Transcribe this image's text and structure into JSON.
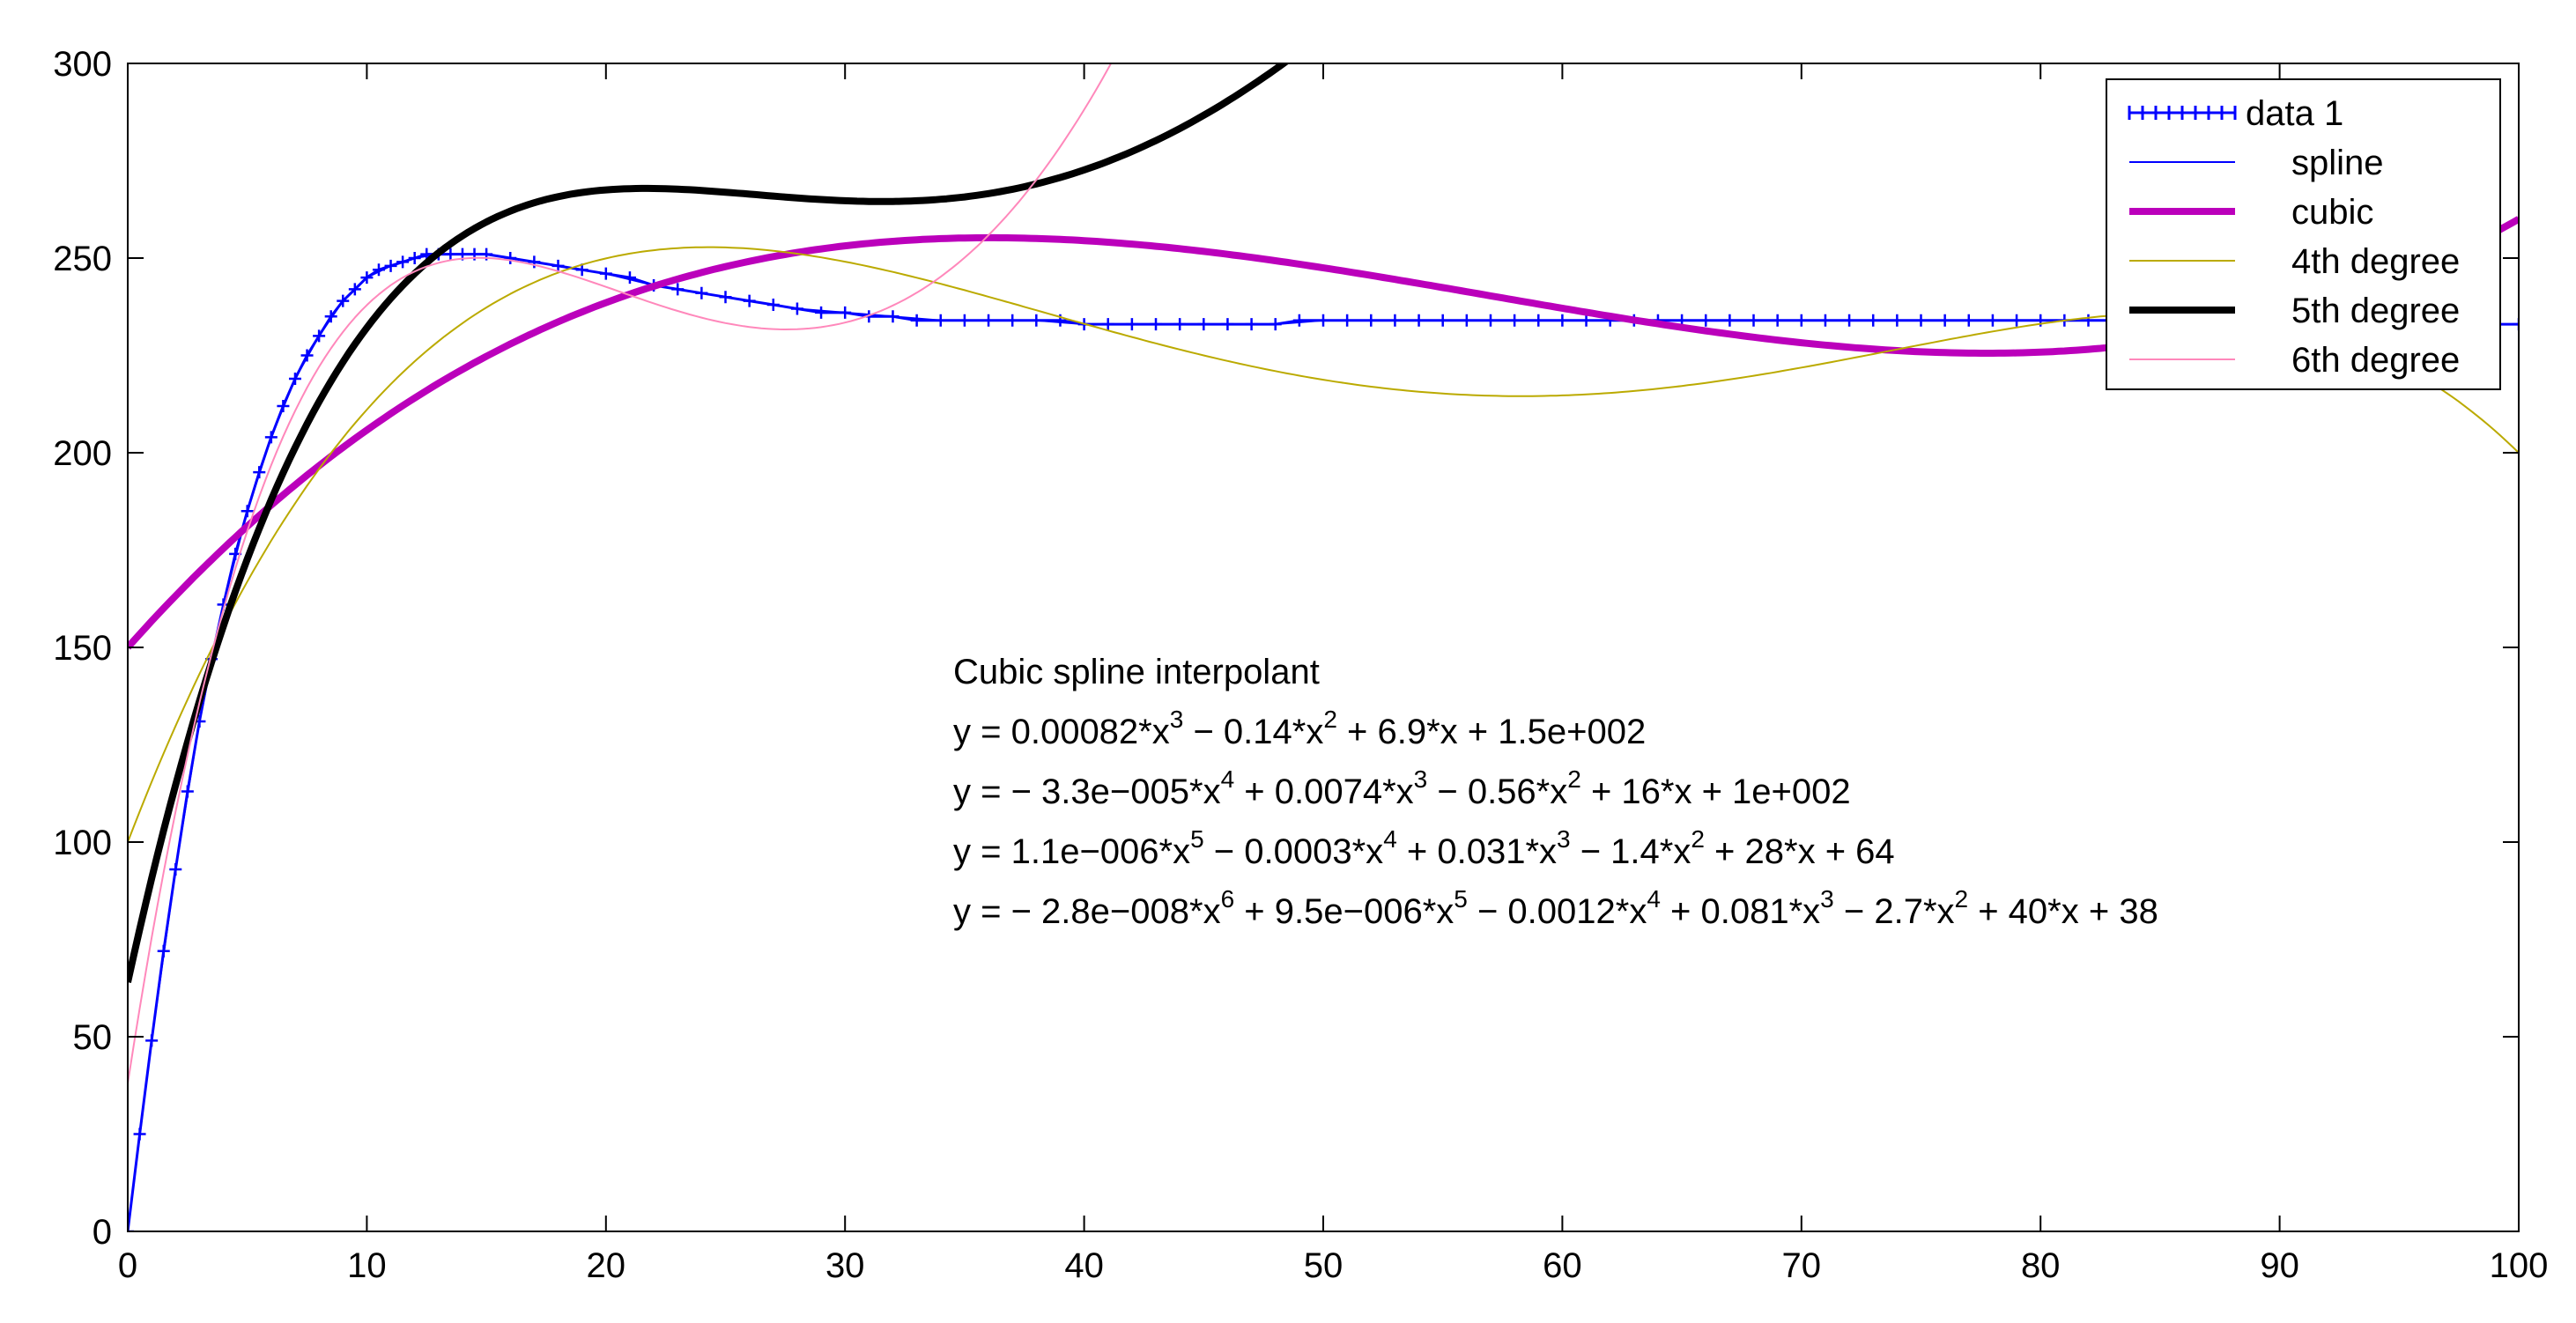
{
  "chart_data": {
    "type": "line",
    "title": "",
    "xlabel": "",
    "ylabel": "",
    "xlim": [
      0,
      100
    ],
    "ylim": [
      0,
      300
    ],
    "xticks": [
      0,
      10,
      20,
      30,
      40,
      50,
      60,
      70,
      80,
      90,
      100
    ],
    "yticks": [
      0,
      50,
      100,
      150,
      200,
      250,
      300
    ],
    "grid": false,
    "legend_position": "top-right",
    "series": [
      {
        "name": "data 1",
        "style": "markers",
        "marker": "+",
        "color": "#0000ff",
        "x": [
          0,
          0.5,
          1,
          1.5,
          2,
          2.5,
          3,
          3.5,
          4,
          4.5,
          5,
          5.5,
          6,
          6.5,
          7,
          7.5,
          8,
          8.5,
          9,
          9.5,
          10,
          10.5,
          11,
          11.5,
          12,
          12.5,
          13,
          13.5,
          14,
          14.5,
          15,
          16,
          17,
          18,
          19,
          20,
          21,
          22,
          23,
          24,
          25,
          26,
          27,
          28,
          29,
          30,
          31,
          32,
          33,
          34,
          35,
          36,
          37,
          38,
          39,
          40,
          41,
          42,
          43,
          44,
          45,
          46,
          47,
          48,
          49,
          50,
          51,
          52,
          53,
          54,
          55,
          56,
          57,
          58,
          59,
          60,
          61,
          62,
          63,
          64,
          65,
          66,
          67,
          68,
          69,
          70,
          71,
          72,
          73,
          74,
          75,
          76,
          77,
          78,
          79,
          80,
          81,
          82,
          83,
          84,
          85,
          86,
          87,
          88,
          89,
          90,
          91,
          92,
          93,
          94,
          95,
          96,
          97,
          98,
          99,
          100
        ],
        "y": [
          0,
          25,
          49,
          72,
          93,
          113,
          131,
          147,
          161,
          174,
          185,
          195,
          204,
          212,
          219,
          225,
          230,
          235,
          239,
          242,
          245,
          247,
          248,
          249,
          250,
          251,
          251,
          251,
          251,
          251,
          251,
          250,
          249,
          248,
          247,
          246,
          245,
          243,
          242,
          241,
          240,
          239,
          238,
          237,
          236,
          236,
          235,
          235,
          234,
          234,
          234,
          234,
          234,
          234,
          234,
          233,
          233,
          233,
          233,
          233,
          233,
          233,
          233,
          233,
          234,
          234,
          234,
          234,
          234,
          234,
          234,
          234,
          234,
          234,
          234,
          234,
          234,
          234,
          234,
          234,
          234,
          234,
          234,
          234,
          234,
          234,
          234,
          234,
          234,
          234,
          234,
          234,
          234,
          234,
          234,
          234,
          234,
          234,
          234,
          234,
          234,
          234,
          234,
          234,
          234,
          234,
          234,
          234,
          234,
          234,
          234,
          234,
          233,
          233,
          233,
          233
        ]
      },
      {
        "name": "spline",
        "style": "line",
        "color": "#0000ff",
        "width": 2,
        "x": [
          0,
          1,
          2,
          3,
          4,
          5,
          6,
          7,
          8,
          9,
          10,
          11,
          12,
          13,
          14,
          15,
          16,
          17,
          18,
          19,
          20,
          22,
          24,
          26,
          28,
          30,
          32,
          34,
          36,
          38,
          40,
          42,
          44,
          46,
          48,
          50,
          55,
          60,
          65,
          70,
          75,
          80,
          85,
          90,
          95,
          100
        ],
        "y": [
          0,
          49,
          93,
          131,
          161,
          185,
          204,
          219,
          230,
          239,
          245,
          248,
          250,
          251,
          251,
          251,
          250,
          249,
          248,
          247,
          246,
          243,
          241,
          239,
          237,
          236,
          235,
          234,
          234,
          234,
          233,
          233,
          233,
          233,
          233,
          234,
          234,
          234,
          234,
          234,
          234,
          234,
          234,
          234,
          233,
          233
        ]
      },
      {
        "name": "cubic",
        "style": "line",
        "color": "#bb00bb",
        "width": 8,
        "coeffs": [
          150,
          6.9,
          -0.14,
          0.00082
        ]
      },
      {
        "name": "4th degree",
        "style": "line",
        "color": "#bbaa00",
        "width": 2,
        "coeffs": [
          100,
          16,
          -0.56,
          0.0074,
          -3.3e-05
        ]
      },
      {
        "name": "5th degree",
        "style": "line",
        "color": "#000000",
        "width": 8,
        "coeffs": [
          64,
          28,
          -1.4,
          0.031,
          -0.0003,
          1.1e-06
        ]
      },
      {
        "name": "6th degree",
        "style": "line",
        "color": "#ff88bb",
        "width": 2,
        "coeffs": [
          38,
          40,
          -2.7,
          0.081,
          -0.0012,
          9.5e-06,
          -2.8e-08
        ]
      }
    ],
    "annotations": [
      "Cubic spline interpolant",
      "y = 0.00082*x^3 − 0.14*x^2 + 6.9*x + 1.5e+002",
      "y = − 3.3e−005*x^4 + 0.0074*x^3 − 0.56*x^2 + 16*x + 1e+002",
      "y = 1.1e−006*x^5 − 0.0003*x^4 + 0.031*x^3 − 1.4*x^2 + 28*x + 64",
      "y = − 2.8e−008*x^6 + 9.5e−006*x^5 − 0.0012*x^4 + 0.081*x^3 − 2.7*x^2 + 40*x + 38"
    ]
  }
}
